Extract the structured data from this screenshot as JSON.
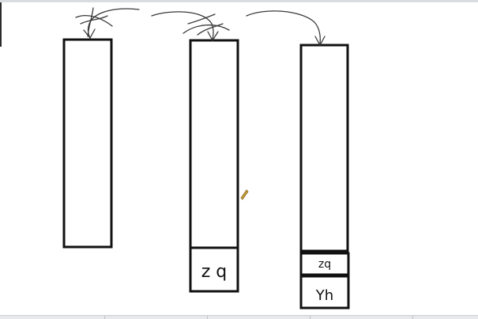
{
  "diagram": {
    "columns": [
      {
        "id": "column-1",
        "cells": []
      },
      {
        "id": "column-2",
        "cells": [
          {
            "label": "z q"
          }
        ]
      },
      {
        "id": "column-3",
        "cells": [
          {
            "label": "zq"
          },
          {
            "label": "Yh"
          }
        ]
      }
    ]
  },
  "colors": {
    "stroke": "#111111",
    "pen_marks": "#3a3a3a",
    "cursor": "#c8a040",
    "background": "#ffffff"
  }
}
